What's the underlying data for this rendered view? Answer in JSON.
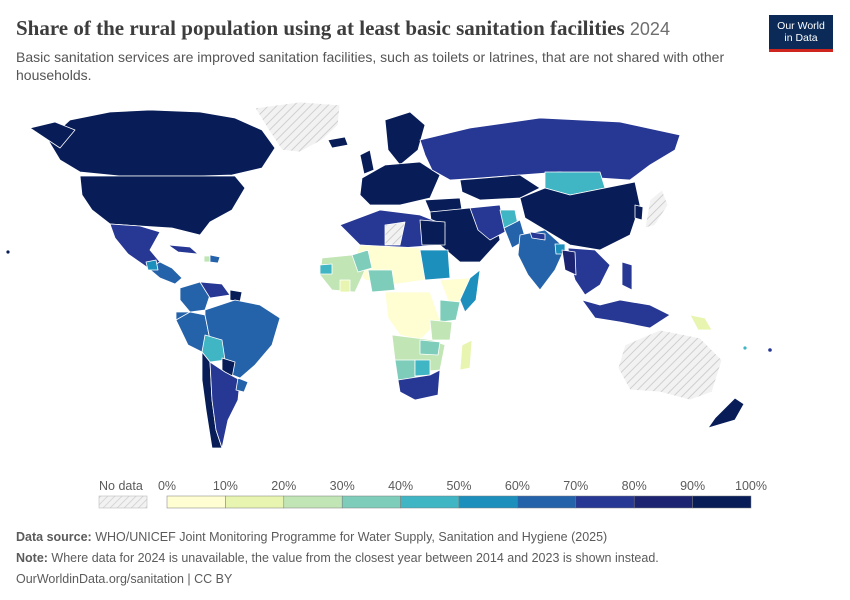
{
  "header": {
    "title": "Share of the rural population using at least basic sanitation facilities",
    "year": "2024",
    "subtitle": "Basic sanitation services are improved sanitation facilities, such as toilets or latrines, that are not shared with other households."
  },
  "logo": {
    "line1": "Our World",
    "line2": "in Data"
  },
  "legend": {
    "no_data_label": "No data",
    "ticks": [
      "0%",
      "10%",
      "20%",
      "30%",
      "40%",
      "50%",
      "60%",
      "70%",
      "80%",
      "90%",
      "100%"
    ],
    "colors": [
      "#fefed2",
      "#e8f5b0",
      "#c1e5b4",
      "#7ecdbb",
      "#40b5c4",
      "#1d8fbd",
      "#2462aa",
      "#263794",
      "#1c2471",
      "#081d58"
    ]
  },
  "footer": {
    "source_label": "Data source:",
    "source_text": " WHO/UNICEF Joint Monitoring Programme for Water Supply, Sanitation and Hygiene (2025)",
    "note_label": "Note:",
    "note_text": " Where data for 2024 is unavailable, the value from the closest year between 2014 and 2023 is shown instead.",
    "link": "OurWorldinData.org/sanitation | CC BY"
  },
  "colors": {
    "no_data_fill": "#f2f2f2",
    "hatch": "#d0d0d0",
    "border": "#ffffff"
  }
}
